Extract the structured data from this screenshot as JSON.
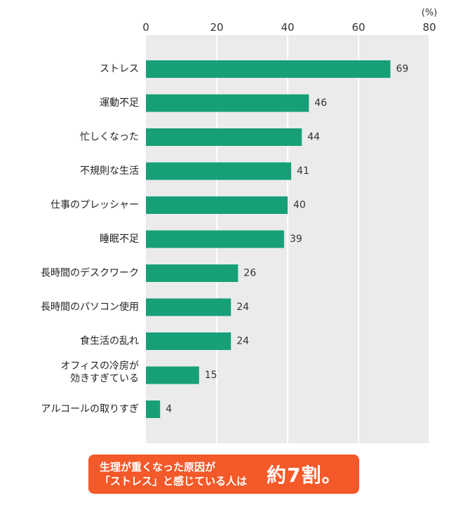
{
  "chart_data": {
    "type": "bar",
    "orientation": "horizontal",
    "unit_label": "(%)",
    "xlim": [
      0,
      80
    ],
    "x_ticks": [
      "0",
      "20",
      "40",
      "60",
      "80"
    ],
    "grid": true,
    "bar_color": "#17a078",
    "plot_bg": "#ebebeb",
    "categories": [
      [
        "ストレス"
      ],
      [
        "運動不足"
      ],
      [
        "忙しくなった"
      ],
      [
        "不規則な生活"
      ],
      [
        "仕事のプレッシャー"
      ],
      [
        "睡眠不足"
      ],
      [
        "長時間のデスクワーク"
      ],
      [
        "長時間のパソコン使用"
      ],
      [
        "食生活の乱れ"
      ],
      [
        "オフィスの冷房が",
        "効きすぎている"
      ],
      [
        "アルコールの取りすぎ"
      ]
    ],
    "values": [
      69,
      46,
      44,
      41,
      40,
      39,
      26,
      24,
      24,
      15,
      4
    ]
  },
  "callout": {
    "line1": "生理が重くなった原因が",
    "line2": "「ストレス」と感じている人は",
    "highlight": "約7割。",
    "color": "#f4592a"
  }
}
